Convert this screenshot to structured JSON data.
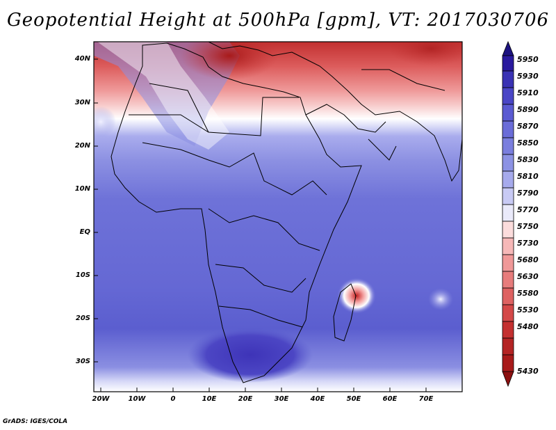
{
  "title": "Geopotential Height at 500hPa [gpm], VT: 2017030706",
  "credit": "GrADS: IGES/COLA",
  "y_axis": [
    "40N",
    "30N",
    "20N",
    "10N",
    "EQ",
    "10S",
    "20S",
    "30S"
  ],
  "x_axis": [
    "20W",
    "10W",
    "0",
    "10E",
    "20E",
    "30E",
    "40E",
    "50E",
    "60E",
    "70E"
  ],
  "colorbar": {
    "labels": [
      "5950",
      "5930",
      "5910",
      "5890",
      "5870",
      "5850",
      "5830",
      "5810",
      "5790",
      "5770",
      "5750",
      "5730",
      "5680",
      "5630",
      "5580",
      "5530",
      "5480",
      "5430"
    ],
    "colors": [
      "#2a1a9e",
      "#3a32b4",
      "#4a46c6",
      "#5a5ad2",
      "#6a6cd8",
      "#7a7ede",
      "#8c92e4",
      "#a6aaec",
      "#c8caf4",
      "#eaeafa",
      "#fbdcdc",
      "#f6b8b8",
      "#f09898",
      "#e77c7c",
      "#de6262",
      "#d44848",
      "#c43030",
      "#a81a1a"
    ]
  }
}
